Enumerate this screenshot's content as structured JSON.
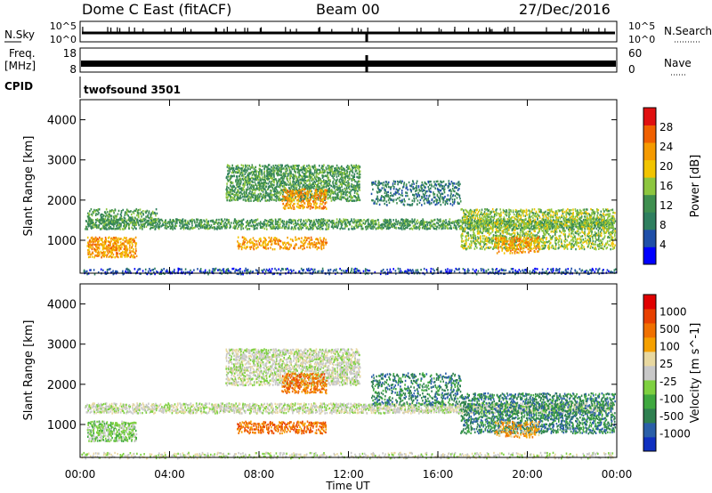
{
  "header": {
    "title": "Dome C East (fitACF)",
    "beam": "Beam 00",
    "date": "27/Dec/2016"
  },
  "strips": {
    "nsky_label": "N.Sky",
    "nsky_top": "10^5",
    "nsky_bottom": "10^0",
    "nsearch_label": "N.Search",
    "nsearch_top": "10^5",
    "nsearch_bottom": "10^0",
    "freq_label_1": "Freq.",
    "freq_label_2": "[MHz]",
    "freq_top": "18",
    "freq_bottom": "8",
    "nave_label": "Nave",
    "nave_top": "60",
    "nave_bottom": "0",
    "cpid_label": "CPID",
    "cpid_value": "twofsound 3501"
  },
  "chart_data": [
    {
      "type": "heatmap",
      "title": "",
      "xlabel": "Time UT",
      "ylabel": "Slant Range [km]",
      "x_ticks": [
        "00:00",
        "04:00",
        "08:00",
        "12:00",
        "16:00",
        "20:00",
        "00:00"
      ],
      "x_range_hours": [
        0,
        24
      ],
      "ylim": [
        180,
        4500
      ],
      "y_ticks": [
        1000,
        2000,
        3000,
        4000
      ],
      "colorbar": {
        "label": "Power [dB]",
        "ticks": [
          "4",
          "8",
          "12",
          "16",
          "20",
          "24",
          "28"
        ],
        "colors": [
          "#0000ff",
          "#1f4fa8",
          "#2f7f5f",
          "#3f8f4f",
          "#8dc63f",
          "#f2c400",
          "#f59a00",
          "#f06000",
          "#e01010"
        ]
      },
      "regions": [
        {
          "t0": 0.2,
          "t1": 23.8,
          "r0": 1300,
          "r1": 1550,
          "level": 3,
          "density": 0.55
        },
        {
          "t0": 0.3,
          "t1": 2.5,
          "r0": 600,
          "r1": 1100,
          "level": 6,
          "density": 0.6
        },
        {
          "t0": 0.3,
          "t1": 3.5,
          "r0": 1400,
          "r1": 1800,
          "level": 3,
          "density": 0.4
        },
        {
          "t0": 6.5,
          "t1": 12.5,
          "r0": 2000,
          "r1": 2900,
          "level": 3,
          "density": 0.55
        },
        {
          "t0": 9.0,
          "t1": 11.0,
          "r0": 1800,
          "r1": 2300,
          "level": 6,
          "density": 0.45
        },
        {
          "t0": 7.0,
          "t1": 11.0,
          "r0": 800,
          "r1": 1100,
          "level": 6,
          "density": 0.35
        },
        {
          "t0": 13.0,
          "t1": 17.0,
          "r0": 1900,
          "r1": 2500,
          "level": 2,
          "density": 0.35
        },
        {
          "t0": 17.0,
          "t1": 23.9,
          "r0": 800,
          "r1": 1800,
          "level": 4,
          "density": 0.45
        },
        {
          "t0": 18.5,
          "t1": 20.5,
          "r0": 700,
          "r1": 1100,
          "level": 6,
          "density": 0.45
        },
        {
          "t0": 0.0,
          "t1": 24.0,
          "r0": 180,
          "r1": 320,
          "level": 1,
          "density": 0.35
        }
      ]
    },
    {
      "type": "heatmap",
      "title": "",
      "xlabel": "Time UT",
      "ylabel": "Slant Range [km]",
      "x_ticks": [
        "00:00",
        "04:00",
        "08:00",
        "12:00",
        "16:00",
        "20:00",
        "00:00"
      ],
      "x_range_hours": [
        0,
        24
      ],
      "ylim": [
        180,
        4500
      ],
      "y_ticks": [
        1000,
        2000,
        3000,
        4000
      ],
      "colorbar": {
        "label": "Velocity [m s^-1]",
        "ticks": [
          "1000",
          "500",
          "100",
          "25",
          "-25",
          "-100",
          "-500",
          "-1000"
        ],
        "colors": [
          "#1030c0",
          "#2a5fa8",
          "#2f8050",
          "#3fa83f",
          "#7ed040",
          "#c8c8c8",
          "#e8d8a0",
          "#f5a000",
          "#f07000",
          "#e84000",
          "#e00000"
        ]
      },
      "regions": [
        {
          "t0": 0.2,
          "t1": 23.8,
          "r0": 1300,
          "r1": 1550,
          "level": 5,
          "density": 0.55
        },
        {
          "t0": 0.3,
          "t1": 2.5,
          "r0": 600,
          "r1": 1100,
          "level": 4,
          "density": 0.6
        },
        {
          "t0": 6.5,
          "t1": 12.5,
          "r0": 2000,
          "r1": 2900,
          "level": 5,
          "density": 0.55
        },
        {
          "t0": 9.0,
          "t1": 11.0,
          "r0": 1800,
          "r1": 2300,
          "level": 8,
          "density": 0.45
        },
        {
          "t0": 7.0,
          "t1": 11.0,
          "r0": 800,
          "r1": 1100,
          "level": 8,
          "density": 0.45
        },
        {
          "t0": 13.0,
          "t1": 17.0,
          "r0": 1500,
          "r1": 2300,
          "level": 2,
          "density": 0.3
        },
        {
          "t0": 17.0,
          "t1": 23.9,
          "r0": 800,
          "r1": 1800,
          "level": 2,
          "density": 0.45
        },
        {
          "t0": 18.5,
          "t1": 20.5,
          "r0": 700,
          "r1": 1100,
          "level": 7,
          "density": 0.35
        },
        {
          "t0": 0.0,
          "t1": 24.0,
          "r0": 180,
          "r1": 320,
          "level": 5,
          "density": 0.35
        }
      ]
    }
  ]
}
